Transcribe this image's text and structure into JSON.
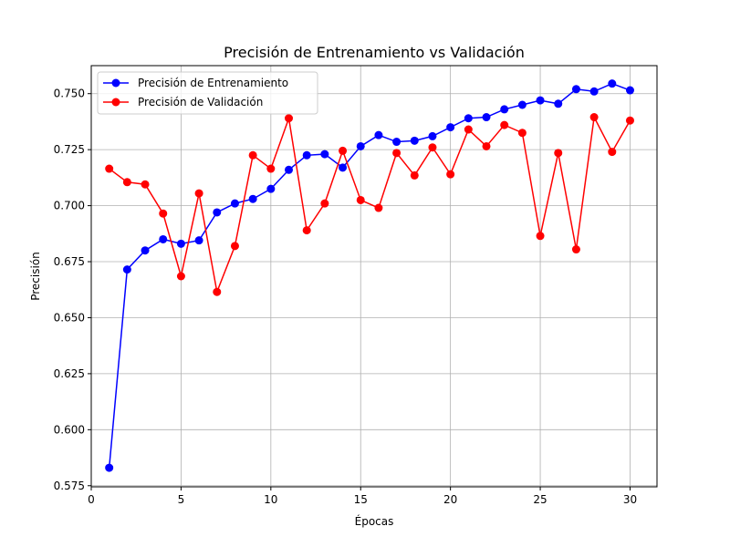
{
  "chart_data": {
    "type": "line",
    "title": "Precisión de Entrenamiento vs Validación",
    "xlabel": "Épocas",
    "ylabel": "Precisión",
    "xlim": [
      0,
      31.5
    ],
    "ylim": [
      0.5745,
      0.7625
    ],
    "x_ticks": [
      0,
      5,
      10,
      15,
      20,
      25,
      30
    ],
    "y_ticks": [
      0.575,
      0.6,
      0.625,
      0.65,
      0.675,
      0.7,
      0.725,
      0.75
    ],
    "y_tick_labels": [
      "0.575",
      "0.600",
      "0.625",
      "0.650",
      "0.675",
      "0.700",
      "0.725",
      "0.750"
    ],
    "grid": true,
    "legend_position": "top-left",
    "x": [
      1,
      2,
      3,
      4,
      5,
      6,
      7,
      8,
      9,
      10,
      11,
      12,
      13,
      14,
      15,
      16,
      17,
      18,
      19,
      20,
      21,
      22,
      23,
      24,
      25,
      26,
      27,
      28,
      29,
      30
    ],
    "series": [
      {
        "name": "Precisión de Entrenamiento",
        "color": "#0000ff",
        "values": [
          0.583,
          0.6715,
          0.68,
          0.685,
          0.683,
          0.6845,
          0.697,
          0.701,
          0.703,
          0.7075,
          0.716,
          0.7225,
          0.723,
          0.717,
          0.7265,
          0.7315,
          0.7285,
          0.729,
          0.731,
          0.735,
          0.739,
          0.7395,
          0.743,
          0.745,
          0.747,
          0.7455,
          0.752,
          0.751,
          0.7545,
          0.7515
        ]
      },
      {
        "name": "Precisión de Validación",
        "color": "#ff0000",
        "values": [
          0.7165,
          0.7105,
          0.7095,
          0.6965,
          0.6685,
          0.7055,
          0.6615,
          0.682,
          0.7225,
          0.7165,
          0.739,
          0.689,
          0.701,
          0.7245,
          0.7025,
          0.699,
          0.7235,
          0.7135,
          0.726,
          0.714,
          0.734,
          0.7265,
          0.736,
          0.7325,
          0.6865,
          0.7235,
          0.6805,
          0.7395,
          0.724,
          0.738
        ]
      }
    ]
  }
}
